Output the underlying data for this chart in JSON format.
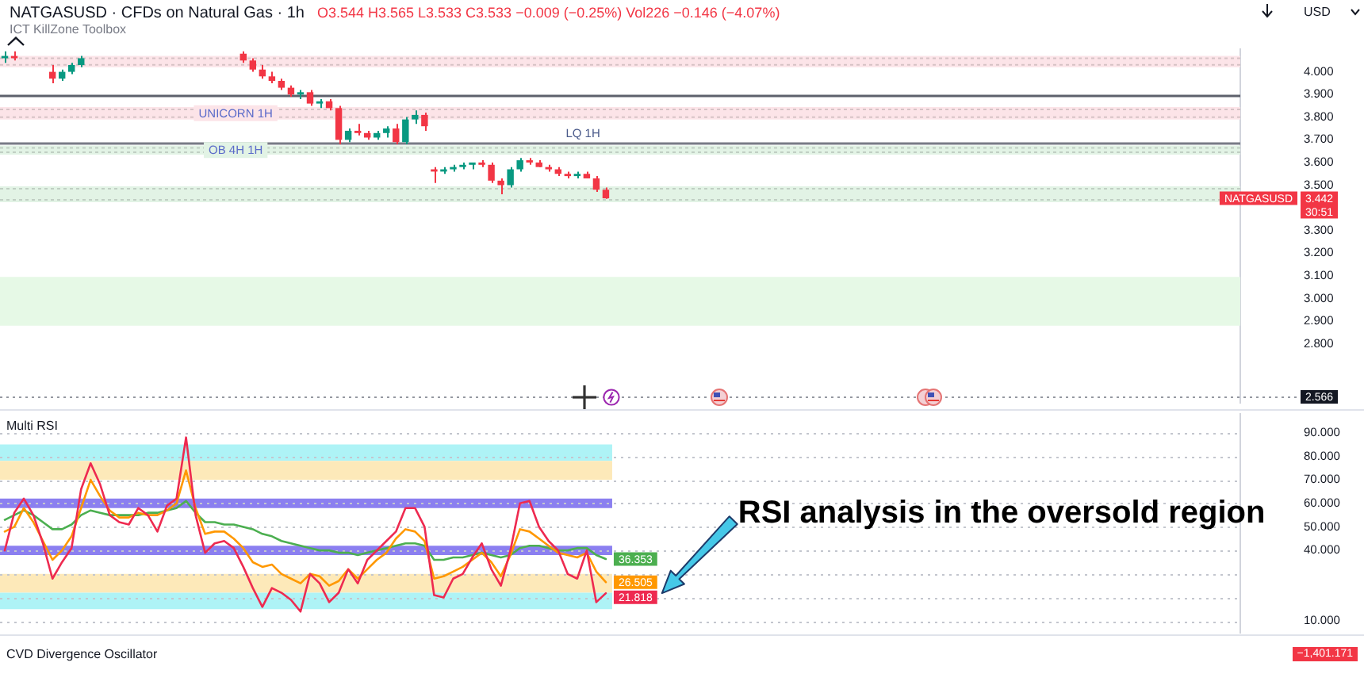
{
  "chart_data": [
    {
      "type": "candlestick",
      "title": "NATGASUSD · CFDs on Natural Gas · 1h",
      "subtitle": "O3.544 H3.565 L3.533 C3.533 −0.009 (−0.25%) Vol226 −0.146 (−4.07%)",
      "ylabel": "USD",
      "categories": [
        null,
        null,
        null,
        null,
        null,
        null,
        null,
        null,
        null,
        null,
        null,
        null,
        null,
        null,
        null,
        null,
        null,
        null,
        null,
        null,
        null,
        null,
        null,
        null,
        null,
        null,
        null,
        null,
        null,
        null,
        null,
        null,
        null,
        null,
        null,
        null,
        null,
        null,
        null,
        null,
        null,
        null,
        null,
        null,
        null,
        null,
        null,
        null,
        null,
        null,
        null,
        null,
        null,
        null,
        null,
        null,
        null,
        null,
        null,
        null,
        null,
        null,
        null,
        null,
        null,
        null,
        null,
        null,
        null,
        null,
        null,
        null,
        null,
        null,
        null,
        null,
        null,
        null,
        null,
        null,
        null,
        null,
        null,
        null,
        null,
        null,
        null,
        null,
        null,
        null,
        null,
        null,
        null,
        null,
        null,
        null,
        null,
        null,
        null,
        null,
        null,
        null,
        null,
        null,
        null,
        null,
        null,
        null,
        null,
        null,
        null,
        null,
        null,
        null,
        null,
        null,
        null,
        null,
        null,
        null,
        null,
        null,
        null,
        null,
        null,
        null,
        null,
        null,
        null,
        null
      ],
      "ohlc": [
        [
          4.06,
          4.09,
          4.04,
          4.07
        ],
        [
          4.07,
          4.09,
          4.05,
          4.06
        ],
        null,
        null,
        null,
        [
          4,
          4.03,
          3.95,
          3.97
        ],
        [
          3.97,
          4.01,
          3.96,
          4
        ],
        [
          4,
          4.04,
          3.99,
          4.03
        ],
        [
          4.03,
          4.07,
          4.02,
          4.06
        ],
        null,
        null,
        null,
        null,
        null,
        null,
        null,
        null,
        null,
        null,
        null,
        null,
        null,
        null,
        null,
        null,
        [
          4.08,
          4.09,
          4.04,
          4.05
        ],
        [
          4.05,
          4.06,
          4,
          4.01
        ],
        [
          4.01,
          4.03,
          3.97,
          3.98
        ],
        [
          3.98,
          4,
          3.95,
          3.96
        ],
        [
          3.96,
          3.97,
          3.92,
          3.93
        ],
        [
          3.93,
          3.94,
          3.89,
          3.9
        ],
        [
          3.9,
          3.92,
          3.88,
          3.91
        ],
        [
          3.91,
          3.92,
          3.85,
          3.86
        ],
        [
          3.86,
          3.88,
          3.84,
          3.87
        ],
        [
          3.87,
          3.88,
          3.83,
          3.84
        ],
        [
          3.84,
          3.85,
          3.68,
          3.7
        ],
        [
          3.7,
          3.75,
          3.69,
          3.74
        ],
        [
          3.74,
          3.77,
          3.72,
          3.73
        ],
        [
          3.73,
          3.74,
          3.7,
          3.71
        ],
        [
          3.71,
          3.74,
          3.7,
          3.73
        ],
        [
          3.73,
          3.76,
          3.71,
          3.75
        ],
        [
          3.75,
          3.77,
          3.68,
          3.69
        ],
        [
          3.69,
          3.8,
          3.68,
          3.79
        ],
        [
          3.79,
          3.83,
          3.77,
          3.81
        ],
        [
          3.81,
          3.82,
          3.74,
          3.76
        ],
        [
          3.57,
          3.58,
          3.51,
          3.56
        ],
        [
          3.56,
          3.58,
          3.55,
          3.57
        ],
        [
          3.57,
          3.59,
          3.56,
          3.58
        ],
        [
          3.58,
          3.6,
          3.57,
          3.59
        ],
        [
          3.59,
          3.6,
          3.57,
          3.6
        ],
        [
          3.6,
          3.61,
          3.58,
          3.59
        ],
        [
          3.59,
          3.6,
          3.51,
          3.52
        ],
        [
          3.52,
          3.53,
          3.46,
          3.5
        ],
        [
          3.5,
          3.58,
          3.49,
          3.57
        ],
        [
          3.57,
          3.62,
          3.56,
          3.61
        ],
        [
          3.61,
          3.62,
          3.59,
          3.6
        ],
        [
          3.6,
          3.61,
          3.58,
          3.58
        ],
        [
          3.58,
          3.59,
          3.56,
          3.57
        ],
        [
          3.57,
          3.58,
          3.54,
          3.55
        ],
        [
          3.55,
          3.56,
          3.53,
          3.54
        ],
        [
          3.54,
          3.56,
          3.53,
          3.55
        ],
        [
          3.55,
          3.56,
          3.53,
          3.53
        ],
        [
          3.53,
          3.54,
          3.47,
          3.48
        ],
        [
          3.48,
          3.49,
          3.44,
          3.442
        ],
        null,
        null,
        null,
        null,
        null,
        null,
        null,
        null,
        null,
        null,
        null,
        null,
        null,
        null,
        null,
        null,
        null,
        null,
        null,
        null,
        null,
        null,
        null,
        null,
        null,
        null,
        null,
        null,
        null,
        null,
        null,
        null,
        null,
        null,
        null,
        null,
        null,
        null,
        null,
        null,
        null,
        null,
        null,
        null,
        null,
        null,
        null,
        null,
        null,
        null,
        null,
        null,
        null,
        null,
        null,
        null,
        null,
        null,
        null,
        null,
        null,
        null,
        null,
        null,
        null,
        null
      ],
      "value_labels": [
        null,
        null,
        null,
        null,
        null,
        null,
        null,
        null,
        null,
        null,
        null,
        null,
        null,
        null,
        null,
        null,
        null,
        null,
        null,
        null,
        null,
        null,
        null,
        null,
        null,
        null,
        null,
        null,
        null,
        null,
        null,
        null,
        null,
        null,
        null,
        null,
        null,
        null,
        null,
        null,
        null,
        null,
        null,
        null,
        null,
        null,
        null,
        null,
        null,
        null,
        null,
        null,
        null,
        null,
        null,
        null,
        null,
        null,
        null,
        null,
        null,
        null,
        null,
        "3.442",
        null,
        null,
        null,
        null,
        null,
        null,
        null,
        null,
        null,
        null,
        null,
        null,
        null,
        null,
        null,
        null,
        null,
        null,
        null,
        null,
        null,
        null,
        null,
        null,
        null,
        null,
        null,
        null,
        null,
        null,
        null,
        null,
        null,
        null,
        null,
        null,
        null,
        null,
        null,
        null,
        null,
        null,
        null,
        null,
        null,
        null,
        null,
        null,
        null,
        null,
        null,
        null,
        null,
        null,
        null,
        null,
        null,
        null,
        null,
        null,
        null,
        null,
        null,
        null,
        null,
        null
      ],
      "colors": [
        "#089981",
        "#f23645",
        null,
        null,
        null,
        "#f23645",
        "#089981",
        "#089981",
        "#089981",
        null,
        null,
        null,
        null,
        null,
        null,
        null,
        null,
        null,
        null,
        null,
        null,
        null,
        null,
        null,
        null,
        "#f23645",
        "#f23645",
        "#f23645",
        "#f23645",
        "#f23645",
        "#f23645",
        "#089981",
        "#f23645",
        "#089981",
        "#f23645",
        "#f23645",
        "#089981",
        "#f23645",
        "#f23645",
        "#089981",
        "#089981",
        "#f23645",
        "#089981",
        "#089981",
        "#f23645",
        "#f23645",
        "#089981",
        "#089981",
        "#089981",
        "#089981",
        "#f23645",
        "#f23645",
        "#f23645",
        "#089981",
        "#089981",
        "#f23645",
        "#f23645",
        "#f23645",
        "#f23645",
        "#f23645",
        "#089981",
        "#f23645",
        "#f23645",
        "#f23645",
        null,
        null,
        null,
        null,
        null,
        null,
        null,
        null,
        null,
        null,
        null,
        null,
        null,
        null,
        null,
        null,
        null,
        null,
        null,
        null,
        null,
        null,
        null,
        null,
        null,
        null,
        null,
        null,
        null,
        null,
        null,
        null,
        null,
        null,
        null,
        null,
        null,
        null,
        null,
        null,
        null,
        null,
        null,
        null,
        null,
        null,
        null,
        null,
        null,
        null,
        null,
        null,
        null,
        null,
        null,
        null,
        null,
        null,
        null,
        null,
        null,
        null,
        null,
        null,
        null,
        null
      ],
      "ylim": [
        2.54,
        4.1
      ],
      "yticks": [
        {
          "value": 4,
          "label": "4.000"
        },
        {
          "value": 3.9,
          "label": "3.900"
        },
        {
          "value": 3.8,
          "label": "3.800"
        },
        {
          "value": 3.7,
          "label": "3.700"
        },
        {
          "value": 3.6,
          "label": "3.600"
        },
        {
          "value": 3.5,
          "label": "3.500"
        },
        {
          "value": 3.3,
          "label": "3.300"
        },
        {
          "value": 3.2,
          "label": "3.200"
        },
        {
          "value": 3.1,
          "label": "3.100"
        },
        {
          "value": 3,
          "label": "3.000"
        },
        {
          "value": 2.9,
          "label": "2.900"
        },
        {
          "value": 2.8,
          "label": "2.800"
        }
      ],
      "tick_labels": "y",
      "bands": [
        {
          "axis": "y",
          "from": 4.02,
          "to": 4.07,
          "color": "#fce4e8"
        },
        {
          "axis": "y",
          "from": 3.79,
          "to": 3.845,
          "label": "UNICORN 1H",
          "color": "#fce4e8"
        },
        {
          "axis": "y",
          "from": 3.635,
          "to": 3.675,
          "label": "OB 4H 1H",
          "color": "#e2f3e5"
        },
        {
          "axis": "y",
          "from": 3.425,
          "to": 3.495,
          "color": "#e2f3e5"
        },
        {
          "axis": "y",
          "from": 2.88,
          "to": 3.095,
          "color": "#e6f9e6"
        }
      ],
      "ref_lines": [
        {
          "axis": "y",
          "value": 3.9,
          "color": "#5d606b"
        },
        {
          "axis": "y",
          "value": 3.685,
          "label": "LQ 1H",
          "color": "#787b86"
        },
        {
          "axis": "y",
          "value": 2.566,
          "label": "2.566",
          "color": "#9598a1",
          "line_style": "dotted"
        }
      ],
      "annotations": [
        "ICT KillZone Toolbox",
        "NATGASUSD",
        "30:51"
      ]
    },
    {
      "type": "line",
      "title": "Multi RSI",
      "categories": [
        null,
        null,
        null,
        null,
        null,
        null,
        null,
        null,
        null,
        null,
        null,
        null,
        null,
        null,
        null,
        null,
        null,
        null,
        null,
        null,
        null,
        null,
        null,
        null,
        null,
        null,
        null,
        null,
        null,
        null,
        null,
        null,
        null,
        null,
        null,
        null,
        null,
        null,
        null,
        null,
        null,
        null,
        null,
        null,
        null,
        null,
        null,
        null,
        null,
        null,
        null,
        null,
        null,
        null,
        null,
        null,
        null,
        null,
        null,
        null,
        null,
        null,
        null,
        null,
        null,
        null,
        null,
        null,
        null,
        null,
        null,
        null,
        null,
        null,
        null,
        null,
        null,
        null,
        null,
        null,
        null,
        null,
        null,
        null,
        null,
        null,
        null,
        null,
        null,
        null,
        null,
        null,
        null,
        null,
        null,
        null,
        null,
        null,
        null,
        null,
        null,
        null,
        null,
        null,
        null,
        null,
        null,
        null,
        null,
        null,
        null,
        null,
        null,
        null,
        null,
        null,
        null,
        null,
        null,
        null,
        null,
        null,
        null,
        null,
        null,
        null,
        null,
        null,
        null,
        null
      ],
      "series": [
        {
          "color": "#ee2a50",
          "values": [
            40,
            56,
            62,
            55,
            43,
            28,
            35,
            41,
            66,
            77,
            68,
            55,
            52,
            51,
            58,
            55,
            48,
            59,
            62,
            88,
            55,
            39,
            43,
            44,
            41,
            33,
            24,
            16,
            24,
            22,
            19,
            14,
            30,
            26,
            18,
            22,
            32,
            26,
            36,
            40,
            44,
            48,
            58,
            58,
            50,
            21,
            20,
            28,
            30,
            37,
            43,
            32,
            25,
            40,
            60,
            61,
            50,
            44,
            40,
            30,
            28,
            40,
            18,
            21.818,
            null,
            null,
            null,
            null,
            null,
            null,
            null,
            null,
            null,
            null,
            null,
            null,
            null,
            null,
            null,
            null,
            null,
            null,
            null,
            null,
            null,
            null,
            null,
            null,
            null,
            null,
            null,
            null,
            null,
            null,
            null,
            null,
            null,
            null,
            null,
            null,
            null,
            null,
            null,
            null,
            null,
            null,
            null,
            null,
            null,
            null,
            null,
            null,
            null,
            null,
            null,
            null,
            null,
            null,
            null,
            null,
            null,
            null,
            null,
            null,
            null,
            null,
            null,
            null,
            null,
            null
          ],
          "value_labels": [
            null,
            null,
            null,
            null,
            null,
            null,
            null,
            null,
            null,
            null,
            null,
            null,
            null,
            null,
            null,
            null,
            null,
            null,
            null,
            null,
            null,
            null,
            null,
            null,
            null,
            null,
            null,
            null,
            null,
            null,
            null,
            null,
            null,
            null,
            null,
            null,
            null,
            null,
            null,
            null,
            null,
            null,
            null,
            null,
            null,
            null,
            null,
            null,
            null,
            null,
            null,
            null,
            null,
            null,
            null,
            null,
            null,
            null,
            null,
            null,
            null,
            null,
            null,
            "21.818",
            null,
            null,
            null,
            null,
            null,
            null,
            null,
            null,
            null,
            null,
            null,
            null,
            null,
            null,
            null,
            null,
            null,
            null,
            null,
            null,
            null,
            null,
            null,
            null,
            null,
            null,
            null,
            null,
            null,
            null,
            null,
            null,
            null,
            null,
            null,
            null,
            null,
            null,
            null,
            null,
            null,
            null,
            null,
            null,
            null,
            null,
            null,
            null,
            null,
            null,
            null,
            null,
            null,
            null,
            null,
            null,
            null,
            null,
            null,
            null,
            null,
            null,
            null,
            null,
            null,
            null
          ]
        },
        {
          "color": "#ff9800",
          "values": [
            48,
            50,
            58,
            52,
            44,
            36,
            40,
            46,
            58,
            70,
            63,
            57,
            54,
            54,
            56,
            55,
            55,
            57,
            60,
            74,
            58,
            47,
            48,
            48,
            45,
            41,
            35,
            33,
            34,
            30,
            28,
            26,
            30,
            29,
            25,
            27,
            32,
            28,
            32,
            36,
            39,
            45,
            49,
            48,
            44,
            28,
            29,
            31,
            33,
            36,
            39,
            35,
            29,
            38,
            49,
            48,
            45,
            42,
            39,
            38,
            37,
            39,
            31,
            26.505,
            null,
            null,
            null,
            null,
            null,
            null,
            null,
            null,
            null,
            null,
            null,
            null,
            null,
            null,
            null,
            null,
            null,
            null,
            null,
            null,
            null,
            null,
            null,
            null,
            null,
            null,
            null,
            null,
            null,
            null,
            null,
            null,
            null,
            null,
            null,
            null,
            null,
            null,
            null,
            null,
            null,
            null,
            null,
            null,
            null,
            null,
            null,
            null,
            null,
            null,
            null,
            null,
            null,
            null,
            null,
            null,
            null,
            null,
            null,
            null,
            null,
            null,
            null,
            null,
            null,
            null
          ],
          "value_labels": [
            null,
            null,
            null,
            null,
            null,
            null,
            null,
            null,
            null,
            null,
            null,
            null,
            null,
            null,
            null,
            null,
            null,
            null,
            null,
            null,
            null,
            null,
            null,
            null,
            null,
            null,
            null,
            null,
            null,
            null,
            null,
            null,
            null,
            null,
            null,
            null,
            null,
            null,
            null,
            null,
            null,
            null,
            null,
            null,
            null,
            null,
            null,
            null,
            null,
            null,
            null,
            null,
            null,
            null,
            null,
            null,
            null,
            null,
            null,
            null,
            null,
            null,
            null,
            "26.505",
            null,
            null,
            null,
            null,
            null,
            null,
            null,
            null,
            null,
            null,
            null,
            null,
            null,
            null,
            null,
            null,
            null,
            null,
            null,
            null,
            null,
            null,
            null,
            null,
            null,
            null,
            null,
            null,
            null,
            null,
            null,
            null,
            null,
            null,
            null,
            null,
            null,
            null,
            null,
            null,
            null,
            null,
            null,
            null,
            null,
            null,
            null,
            null,
            null,
            null,
            null,
            null,
            null,
            null,
            null,
            null,
            null,
            null,
            null,
            null,
            null,
            null,
            null,
            null,
            null,
            null
          ]
        },
        {
          "color": "#4caf50",
          "values": [
            53,
            55,
            57,
            55,
            52,
            49,
            49,
            51,
            55,
            57,
            56,
            55,
            55,
            55,
            55,
            56,
            56,
            57,
            58,
            61,
            56,
            52,
            52,
            51,
            51,
            50,
            49,
            47,
            46,
            44,
            43,
            42,
            41,
            40,
            40,
            39,
            39,
            38,
            39,
            40,
            41,
            42,
            43,
            43,
            42,
            36,
            36,
            37,
            37,
            38,
            39,
            38,
            37,
            38,
            41,
            42,
            42,
            41,
            40,
            40,
            41,
            41,
            38,
            36.353,
            null,
            null,
            null,
            null,
            null,
            null,
            null,
            null,
            null,
            null,
            null,
            null,
            null,
            null,
            null,
            null,
            null,
            null,
            null,
            null,
            null,
            null,
            null,
            null,
            null,
            null,
            null,
            null,
            null,
            null,
            null,
            null,
            null,
            null,
            null,
            null,
            null,
            null,
            null,
            null,
            null,
            null,
            null,
            null,
            null,
            null,
            null,
            null,
            null,
            null,
            null,
            null,
            null,
            null,
            null,
            null,
            null,
            null,
            null,
            null,
            null,
            null,
            null,
            null,
            null,
            null
          ],
          "value_labels": [
            null,
            null,
            null,
            null,
            null,
            null,
            null,
            null,
            null,
            null,
            null,
            null,
            null,
            null,
            null,
            null,
            null,
            null,
            null,
            null,
            null,
            null,
            null,
            null,
            null,
            null,
            null,
            null,
            null,
            null,
            null,
            null,
            null,
            null,
            null,
            null,
            null,
            null,
            null,
            null,
            null,
            null,
            null,
            null,
            null,
            null,
            null,
            null,
            null,
            null,
            null,
            null,
            null,
            null,
            null,
            null,
            null,
            null,
            null,
            null,
            null,
            null,
            null,
            "36.353",
            null,
            null,
            null,
            null,
            null,
            null,
            null,
            null,
            null,
            null,
            null,
            null,
            null,
            null,
            null,
            null,
            null,
            null,
            null,
            null,
            null,
            null,
            null,
            null,
            null,
            null,
            null,
            null,
            null,
            null,
            null,
            null,
            null,
            null,
            null,
            null,
            null,
            null,
            null,
            null,
            null,
            null,
            null,
            null,
            null,
            null,
            null,
            null,
            null,
            null,
            null,
            null,
            null,
            null,
            null,
            null,
            null,
            null,
            null,
            null,
            null,
            null,
            null,
            null,
            null,
            null
          ]
        }
      ],
      "ylim": [
        5,
        98
      ],
      "yticks": [
        {
          "value": 90,
          "label": "90.000"
        },
        {
          "value": 80,
          "label": "80.000"
        },
        {
          "value": 70,
          "label": "70.000"
        },
        {
          "value": 60,
          "label": "60.000"
        },
        {
          "value": 50,
          "label": "50.000"
        },
        {
          "value": 40,
          "label": "40.000"
        },
        {
          "value": 30,
          "label": null
        },
        {
          "value": 20,
          "label": null
        },
        {
          "value": 10,
          "label": "10.000"
        }
      ],
      "grid": "y",
      "tick_labels": "y",
      "bands": [
        {
          "axis": "y",
          "from": 78,
          "to": 85,
          "color": "#aef3f6"
        },
        {
          "axis": "y",
          "from": 70,
          "to": 78,
          "color": "#fde9b9"
        },
        {
          "axis": "y",
          "from": 58,
          "to": 62,
          "color": "#8b7ff0"
        },
        {
          "axis": "y",
          "from": 38,
          "to": 42,
          "color": "#8b7ff0"
        },
        {
          "axis": "y",
          "from": 22,
          "to": 30,
          "color": "#fde9b9"
        },
        {
          "axis": "y",
          "from": 15,
          "to": 22,
          "color": "#aef3f6"
        }
      ],
      "annotations": [
        "RSI analysis in the oversold region"
      ]
    },
    {
      "type": "other",
      "title": "CVD Divergence Oscillator",
      "annotations": [
        "−1,401.171"
      ]
    }
  ]
}
